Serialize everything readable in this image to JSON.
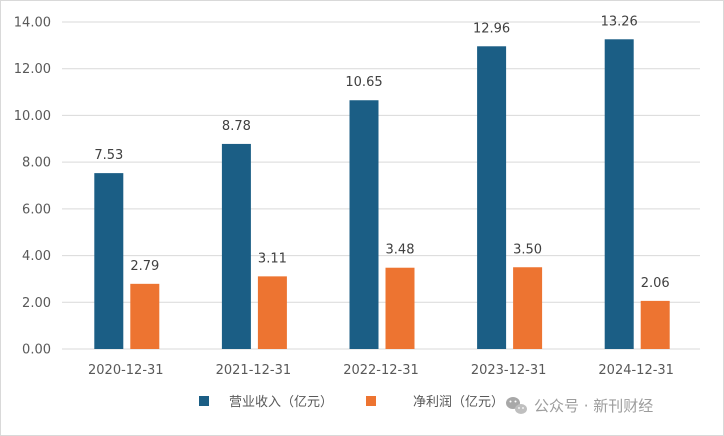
{
  "chart_data": {
    "type": "bar",
    "categories": [
      "2020-12-31",
      "2021-12-31",
      "2022-12-31",
      "2023-12-31",
      "2024-12-31"
    ],
    "series": [
      {
        "name": "营业收入（亿元）",
        "values": [
          7.53,
          8.78,
          10.65,
          12.96,
          13.26
        ],
        "color": "#1b5e85"
      },
      {
        "name": "净利润（亿元）",
        "values": [
          2.79,
          3.11,
          3.48,
          3.5,
          2.06
        ],
        "color": "#ed7431"
      }
    ],
    "data_labels": {
      "revenue": [
        "7.53",
        "8.78",
        "10.65",
        "12.96",
        "13.26"
      ],
      "profit": [
        "2.79",
        "3.11",
        "3.48",
        "3.50",
        "2.06"
      ]
    },
    "yticks": [
      "0.00",
      "2.00",
      "4.00",
      "6.00",
      "8.00",
      "10.00",
      "12.00",
      "14.00"
    ],
    "ylim": [
      0,
      14
    ],
    "grid": true,
    "legend_position": "bottom",
    "title": "",
    "xlabel": "",
    "ylabel": ""
  },
  "watermark": {
    "text": "公众号 · 新刊财经",
    "icon": "wechat-icon"
  },
  "colors": {
    "grid": "#d9d9d9",
    "axis": "#d9d9d9",
    "text": "#595959"
  }
}
